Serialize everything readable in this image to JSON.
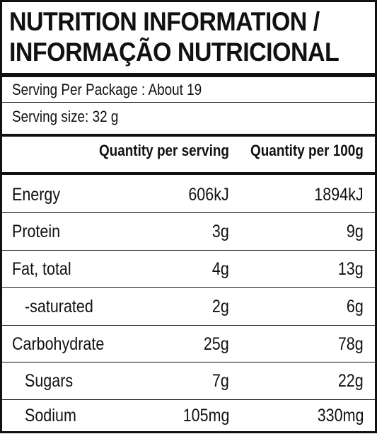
{
  "title": {
    "line1": "NUTRITION INFORMATION /",
    "line2": "INFORMAÇÃO NUTRICIONAL"
  },
  "serving": {
    "per_package": "Serving Per Package : About 19",
    "size": "Serving size: 32 g"
  },
  "table": {
    "headers": {
      "per_serving": "Quantity per serving",
      "per_100g": "Quantity per 100g"
    },
    "rows": [
      {
        "name": "Energy",
        "per_serving": "606kJ",
        "per_100g": "1894kJ"
      },
      {
        "name": "Protein",
        "per_serving": "3g",
        "per_100g": "9g"
      },
      {
        "name": "Fat, total",
        "per_serving": "4g",
        "per_100g": "13g"
      },
      {
        "name": "-saturated",
        "per_serving": "2g",
        "per_100g": "6g"
      },
      {
        "name": "Carbohydrate",
        "per_serving": "25g",
        "per_100g": "78g"
      },
      {
        "name": "Sugars",
        "per_serving": "7g",
        "per_100g": "22g"
      },
      {
        "name": "Sodium",
        "per_serving": "105mg",
        "per_100g": "330mg"
      }
    ]
  }
}
